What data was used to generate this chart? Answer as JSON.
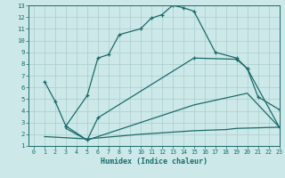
{
  "bg_color": "#cce8e8",
  "line_color": "#1a6b6b",
  "grid_color": "#aacece",
  "xlabel": "Humidex (Indice chaleur)",
  "xlim": [
    -0.5,
    23
  ],
  "ylim": [
    1,
    13
  ],
  "xticks": [
    0,
    1,
    2,
    3,
    4,
    5,
    6,
    7,
    8,
    9,
    10,
    11,
    12,
    13,
    14,
    15,
    16,
    17,
    18,
    19,
    20,
    21,
    22,
    23
  ],
  "yticks": [
    1,
    2,
    3,
    4,
    5,
    6,
    7,
    8,
    9,
    10,
    11,
    12,
    13
  ],
  "curve1_x": [
    1,
    2,
    3,
    5,
    6,
    7,
    8,
    10,
    11,
    12,
    13,
    14,
    15,
    17,
    19,
    20,
    21,
    23
  ],
  "curve1_y": [
    6.5,
    4.8,
    2.7,
    5.3,
    8.5,
    8.8,
    10.5,
    11.0,
    11.9,
    12.2,
    13.0,
    12.8,
    12.5,
    9.0,
    8.5,
    7.6,
    5.2,
    4.1
  ],
  "curve2_x": [
    3,
    5,
    6,
    15,
    19,
    20,
    23
  ],
  "curve2_y": [
    2.7,
    1.5,
    3.4,
    8.5,
    8.4,
    7.6,
    2.6
  ],
  "curve3_x": [
    1,
    5,
    10,
    15,
    18,
    19,
    23
  ],
  "curve3_y": [
    1.8,
    1.6,
    2.0,
    2.3,
    2.4,
    2.5,
    2.6
  ],
  "curve4_x": [
    3,
    5,
    15,
    20,
    23
  ],
  "curve4_y": [
    2.5,
    1.5,
    4.5,
    5.5,
    2.6
  ]
}
